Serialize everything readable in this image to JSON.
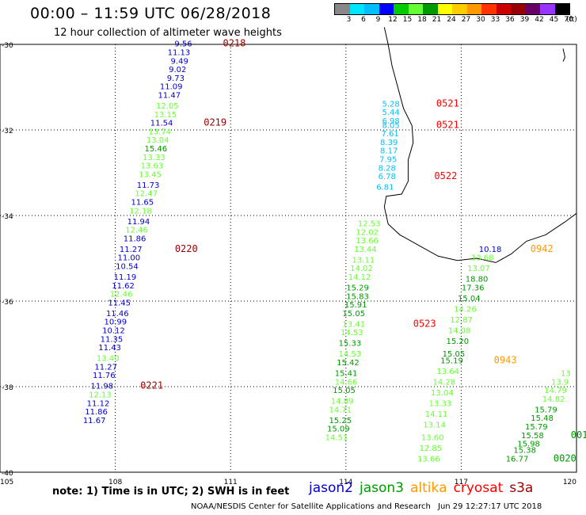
{
  "header": {
    "title": "00:00 – 11:59 UTC 06/28/2018",
    "subtitle": "12 hour collection of altimeter wave heights"
  },
  "colorbar": {
    "colors": [
      "#888888",
      "#00e5ff",
      "#00bfff",
      "#0000ff",
      "#00cc00",
      "#66ff33",
      "#009900",
      "#ffff00",
      "#ffcc00",
      "#ff9900",
      "#ff3300",
      "#cc0000",
      "#990000",
      "#660066",
      "#9933ff",
      "#000000"
    ],
    "labels": [
      "3",
      "6",
      "9",
      "12",
      "15",
      "18",
      "21",
      "24",
      "27",
      "30",
      "33",
      "36",
      "39",
      "42",
      "45",
      "70",
      "(ft)"
    ]
  },
  "note": "note: 1) Time is in UTC; 2) SWH is in feet",
  "legend": [
    {
      "label": "jason2",
      "color": "#0000cc"
    },
    {
      "label": "jason3",
      "color": "#009900"
    },
    {
      "label": "altika",
      "color": "#ff9900"
    },
    {
      "label": "cryosat",
      "color": "#ff0000"
    },
    {
      "label": "s3a",
      "color": "#990000"
    }
  ],
  "footer": {
    "credit": "NOAA/NESDIS Center for Satellite Applications and Research",
    "timestamp": "Jun 29 12:27:17 UTC 2018"
  },
  "chart_data": {
    "type": "scatter",
    "xlim": [
      105,
      120
    ],
    "ylim": [
      -40,
      -30
    ],
    "xticks": [
      "105",
      "108",
      "111",
      "114",
      "117",
      "120"
    ],
    "yticks": [
      "-30",
      "-32",
      "-34",
      "-36",
      "-38",
      "-40"
    ],
    "grid": true,
    "tracks": [
      {
        "color": "#990000",
        "time": "0218",
        "time_at": [
          110.8,
          -30.05
        ],
        "points": [
          [
            110.0,
            -30.05,
            "9.56",
            "#0000cc"
          ],
          [
            109.95,
            -30.25,
            "11.13",
            "#0000cc"
          ],
          [
            109.9,
            -30.45,
            "9.49",
            "#0000cc"
          ],
          [
            109.85,
            -30.65,
            "9.02",
            "#0000cc"
          ],
          [
            109.8,
            -30.85,
            "9.73",
            "#0000cc"
          ],
          [
            109.75,
            -31.05,
            "11.09",
            "#0000cc"
          ],
          [
            109.7,
            -31.25,
            "11.47",
            "#0000cc"
          ],
          [
            109.65,
            -31.5,
            "12.05",
            "#66ff33"
          ],
          [
            109.6,
            -31.7,
            "13.15",
            "#66ff33"
          ]
        ]
      },
      {
        "color": "#990000",
        "time": "0219",
        "time_at": [
          110.3,
          -31.9
        ],
        "points": [
          [
            109.5,
            -31.9,
            "11.54",
            "#0000cc"
          ],
          [
            109.45,
            -32.1,
            "13.74",
            "#66ff33"
          ],
          [
            109.4,
            -32.3,
            "13.04",
            "#66ff33"
          ],
          [
            109.35,
            -32.5,
            "15.46",
            "#009900"
          ],
          [
            109.3,
            -32.7,
            "13.33",
            "#66ff33"
          ],
          [
            109.25,
            -32.9,
            "13.63",
            "#66ff33"
          ],
          [
            109.2,
            -33.1,
            "13.45",
            "#66ff33"
          ],
          [
            109.15,
            -33.35,
            "11.73",
            "#0000cc"
          ],
          [
            109.1,
            -33.55,
            "12.47",
            "#66ff33"
          ],
          [
            109.0,
            -33.75,
            "11.65",
            "#0000cc"
          ],
          [
            108.95,
            -33.95,
            "12.18",
            "#66ff33"
          ],
          [
            108.9,
            -34.2,
            "11.94",
            "#0000cc"
          ],
          [
            108.85,
            -34.4,
            "12.46",
            "#66ff33"
          ],
          [
            108.8,
            -34.6,
            "11.86",
            "#0000cc"
          ]
        ]
      },
      {
        "color": "#990000",
        "time": "0220",
        "time_at": [
          109.55,
          -34.85
        ],
        "points": [
          [
            108.7,
            -34.85,
            "11.27",
            "#0000cc"
          ],
          [
            108.65,
            -35.05,
            "11.00",
            "#0000cc"
          ],
          [
            108.6,
            -35.25,
            "10.54",
            "#0000cc"
          ],
          [
            108.55,
            -35.5,
            "11.19",
            "#0000cc"
          ],
          [
            108.5,
            -35.7,
            "11.62",
            "#0000cc"
          ],
          [
            108.45,
            -35.9,
            "12.46",
            "#66ff33"
          ],
          [
            108.4,
            -36.1,
            "11.45",
            "#0000cc"
          ],
          [
            108.35,
            -36.35,
            "11.46",
            "#0000cc"
          ],
          [
            108.3,
            -36.55,
            "10.99",
            "#0000cc"
          ],
          [
            108.25,
            -36.75,
            "10.12",
            "#0000cc"
          ],
          [
            108.2,
            -36.95,
            "11.35",
            "#0000cc"
          ],
          [
            108.15,
            -37.15,
            "11.43",
            "#0000cc"
          ],
          [
            108.1,
            -37.4,
            "13.40",
            "#66ff33"
          ],
          [
            108.05,
            -37.6,
            "11.27",
            "#0000cc"
          ],
          [
            108.0,
            -37.8,
            "11.76",
            "#0000cc"
          ]
        ]
      },
      {
        "color": "#990000",
        "time": "0221",
        "time_at": [
          108.65,
          -38.05
        ],
        "points": [
          [
            107.95,
            -38.05,
            "11.98",
            "#0000cc"
          ],
          [
            107.9,
            -38.25,
            "12.13",
            "#66ff33"
          ],
          [
            107.85,
            -38.45,
            "11.12",
            "#0000cc"
          ],
          [
            107.8,
            -38.65,
            "11.86",
            "#0000cc"
          ],
          [
            107.75,
            -38.85,
            "11.67",
            "#0000cc"
          ]
        ]
      },
      {
        "color": "#ff0000",
        "time": "0521",
        "time_at": [
          116.35,
          -31.45
        ],
        "points": [
          [
            115.4,
            -31.45,
            "5.28",
            "#00bfff"
          ],
          [
            115.4,
            -31.65,
            "5.44",
            "#00bfff"
          ]
        ]
      },
      {
        "color": "#ff0000",
        "time": "0521",
        "time_at": [
          116.35,
          -31.95
        ],
        "points": [
          [
            115.4,
            -31.85,
            "6.98",
            "#00bfff"
          ],
          [
            115.4,
            -31.95,
            "8.05",
            "#00bfff"
          ],
          [
            115.38,
            -32.15,
            "7.61",
            "#00bfff"
          ],
          [
            115.35,
            -32.35,
            "8.39",
            "#00bfff"
          ],
          [
            115.35,
            -32.55,
            "8.17",
            "#00bfff"
          ],
          [
            115.33,
            -32.75,
            "7.95",
            "#00bfff"
          ],
          [
            115.3,
            -32.95,
            "8.28",
            "#00bfff"
          ],
          [
            115.3,
            -33.15,
            "6.78",
            "#00bfff"
          ],
          [
            115.25,
            -33.4,
            "6.81",
            "#00bfff"
          ]
        ]
      },
      {
        "color": "#ff0000",
        "time": "0522",
        "time_at": [
          116.3,
          -33.15
        ],
        "points": []
      },
      {
        "color": "#ff0000",
        "time": "0523",
        "time_at": [
          115.75,
          -36.6
        ],
        "points": [
          [
            114.9,
            -34.25,
            "12.53",
            "#66ff33"
          ],
          [
            114.85,
            -34.45,
            "12.02",
            "#66ff33"
          ],
          [
            114.85,
            -34.65,
            "13.66",
            "#66ff33"
          ],
          [
            114.8,
            -34.85,
            "13.44",
            "#66ff33"
          ],
          [
            114.75,
            -35.1,
            "13.11",
            "#66ff33"
          ],
          [
            114.7,
            -35.3,
            "14.02",
            "#66ff33"
          ],
          [
            114.65,
            -35.5,
            "14.12",
            "#66ff33"
          ],
          [
            114.6,
            -35.75,
            "15.29",
            "#009900"
          ],
          [
            114.6,
            -35.95,
            "15.83",
            "#009900"
          ],
          [
            114.55,
            -36.15,
            "15.91",
            "#009900"
          ],
          [
            114.5,
            -36.35,
            "15.05",
            "#009900"
          ],
          [
            114.5,
            -36.6,
            "13.41",
            "#66ff33"
          ],
          [
            114.45,
            -36.8,
            "14.53",
            "#66ff33"
          ],
          [
            114.4,
            -37.05,
            "15.33",
            "#009900"
          ],
          [
            114.4,
            -37.3,
            "14.53",
            "#66ff33"
          ],
          [
            114.35,
            -37.5,
            "15.42",
            "#009900"
          ],
          [
            114.3,
            -37.75,
            "15.41",
            "#009900"
          ],
          [
            114.3,
            -37.95,
            "14.66",
            "#66ff33"
          ],
          [
            114.25,
            -38.15,
            "15.05",
            "#009900"
          ],
          [
            114.2,
            -38.4,
            "14.89",
            "#66ff33"
          ],
          [
            114.15,
            -38.6,
            "14.71",
            "#66ff33"
          ],
          [
            114.15,
            -38.85,
            "15.25",
            "#009900"
          ],
          [
            114.1,
            -39.05,
            "15.09",
            "#009900"
          ],
          [
            114.05,
            -39.25,
            "14.51",
            "#66ff33"
          ]
        ]
      },
      {
        "color": "#ff9900",
        "time": "0942",
        "time_at": [
          118.8,
          -34.85
        ],
        "points": [
          [
            118.05,
            -34.85,
            "10.18",
            "#0000cc"
          ],
          [
            117.85,
            -35.05,
            "13.68",
            "#66ff33"
          ],
          [
            117.75,
            -35.3,
            "13.07",
            "#66ff33"
          ],
          [
            117.7,
            -35.55,
            "18.80",
            "#009900"
          ],
          [
            117.6,
            -35.75,
            "17.36",
            "#009900"
          ],
          [
            117.5,
            -36.0,
            "15.04",
            "#009900"
          ],
          [
            117.4,
            -36.25,
            "14.26",
            "#66ff33"
          ],
          [
            117.3,
            -36.5,
            "12.87",
            "#66ff33"
          ],
          [
            117.25,
            -36.75,
            "14.08",
            "#66ff33"
          ],
          [
            117.2,
            -37.0,
            "15.20",
            "#009900"
          ],
          [
            117.1,
            -37.3,
            "15.05",
            "#009900"
          ]
        ]
      },
      {
        "color": "#ff9900",
        "time": "0943",
        "time_at": [
          117.85,
          -37.45
        ],
        "points": [
          [
            117.05,
            -37.45,
            "15.19",
            "#009900"
          ],
          [
            116.95,
            -37.7,
            "13.64",
            "#66ff33"
          ],
          [
            116.85,
            -37.95,
            "14.28",
            "#66ff33"
          ],
          [
            116.8,
            -38.2,
            "13.04",
            "#66ff33"
          ],
          [
            116.75,
            -38.45,
            "13.33",
            "#66ff33"
          ],
          [
            116.65,
            -38.7,
            "14.11",
            "#66ff33"
          ],
          [
            116.6,
            -38.95,
            "13.14",
            "#66ff33"
          ],
          [
            116.55,
            -39.25,
            "13.60",
            "#66ff33"
          ],
          [
            116.5,
            -39.5,
            "12.85",
            "#66ff33"
          ],
          [
            116.45,
            -39.75,
            "13.66",
            "#66ff33"
          ]
        ]
      },
      {
        "color": "#009900",
        "time": "0020",
        "time_at": [
          119.4,
          -39.75
        ],
        "points": [
          [
            119.85,
            -37.75,
            "13",
            "#66ff33"
          ],
          [
            119.8,
            -37.95,
            "13.9",
            "#66ff33"
          ],
          [
            119.75,
            -38.15,
            "14.79",
            "#66ff33"
          ],
          [
            119.7,
            -38.35,
            "14.82",
            "#66ff33"
          ],
          [
            119.5,
            -38.6,
            "15.79",
            "#009900"
          ],
          [
            119.4,
            -38.8,
            "15.48",
            "#009900"
          ],
          [
            119.25,
            -39.0,
            "15.79",
            "#009900"
          ],
          [
            119.15,
            -39.2,
            "15.58",
            "#009900"
          ],
          [
            119.05,
            -39.4,
            "15.98",
            "#009900"
          ],
          [
            118.95,
            -39.55,
            "15.38",
            "#009900"
          ],
          [
            118.75,
            -39.75,
            "16.77",
            "#009900"
          ]
        ]
      },
      {
        "color": "#009900",
        "time": "001",
        "time_at": [
          119.85,
          -39.2
        ],
        "points": []
      }
    ]
  }
}
